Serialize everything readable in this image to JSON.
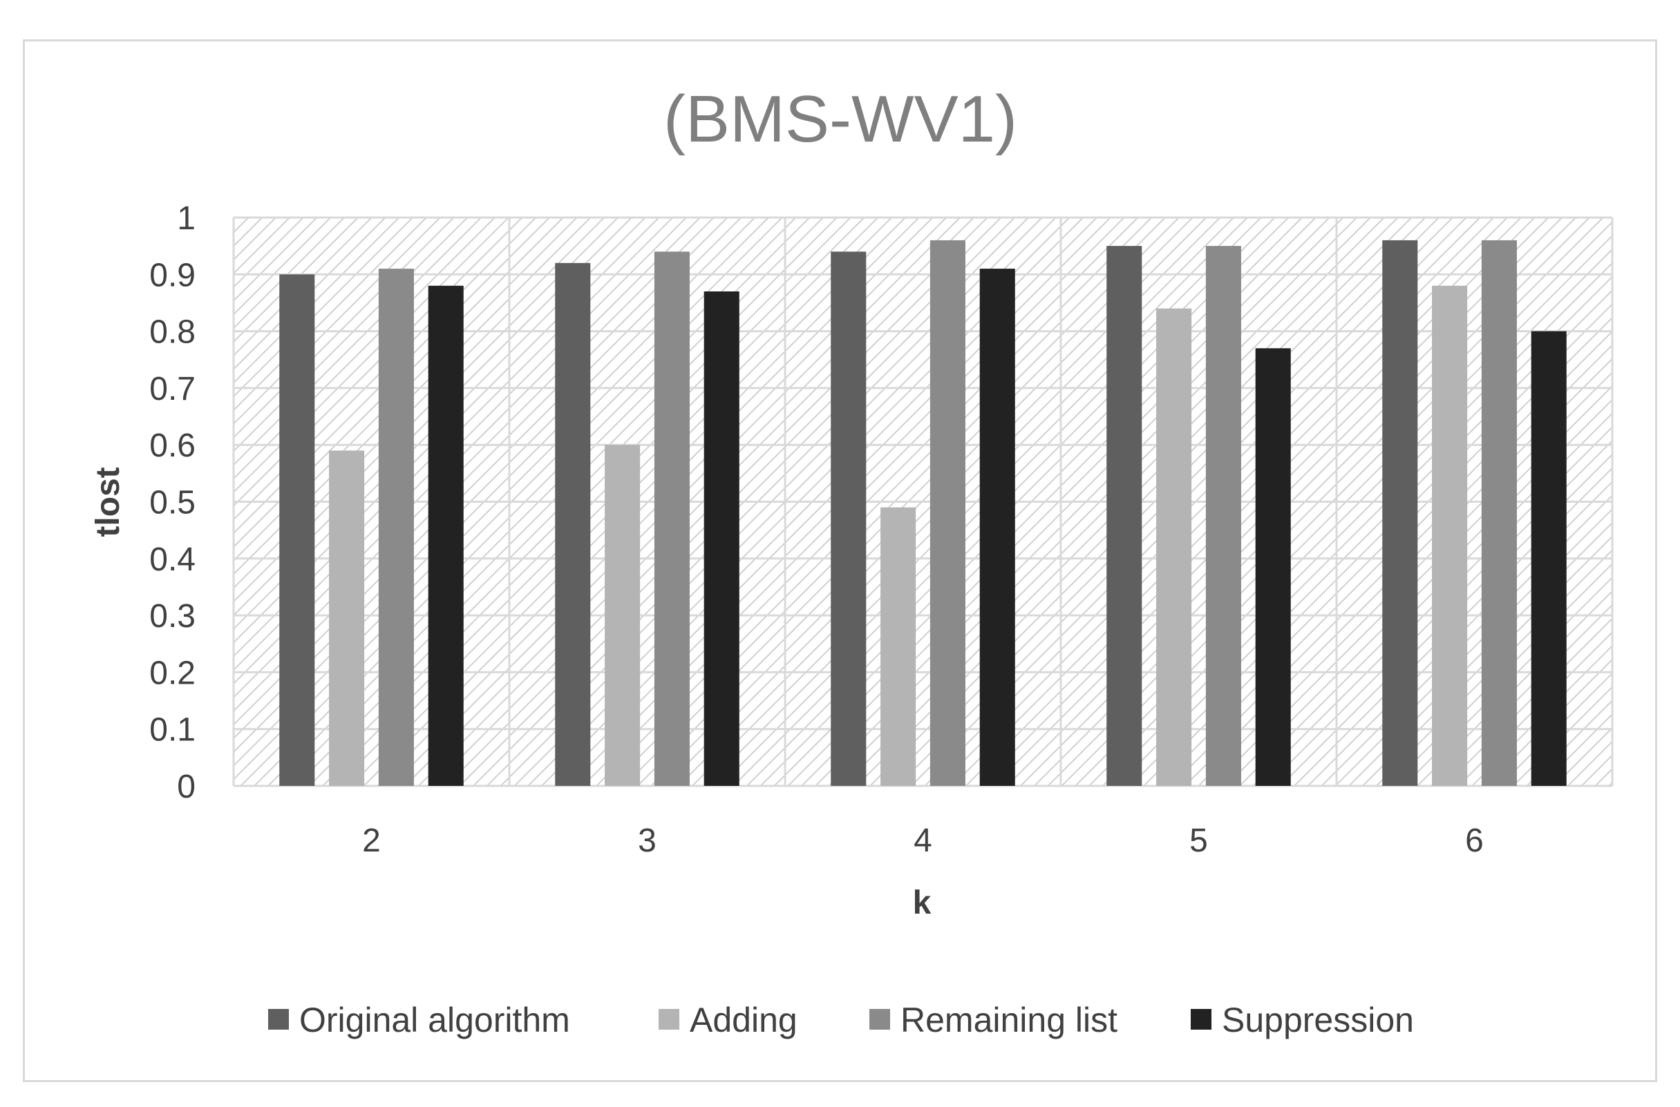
{
  "chart_data": {
    "type": "bar",
    "title": "(BMS-WV1)",
    "xlabel": "k",
    "ylabel": "tlost",
    "categories": [
      "2",
      "3",
      "4",
      "5",
      "6"
    ],
    "ylim": [
      0,
      1
    ],
    "yticks": [
      "0",
      "0.1",
      "0.2",
      "0.3",
      "0.4",
      "0.5",
      "0.6",
      "0.7",
      "0.8",
      "0.9",
      "1"
    ],
    "grid": true,
    "legend_position": "bottom",
    "series": [
      {
        "name": "Original algorithm",
        "color": "#5f5f5f",
        "values": [
          0.9,
          0.92,
          0.94,
          0.95,
          0.96
        ]
      },
      {
        "name": "Adding",
        "color": "#b4b4b4",
        "values": [
          0.59,
          0.6,
          0.49,
          0.84,
          0.88
        ]
      },
      {
        "name": "Remaining list",
        "color": "#8a8a8a",
        "values": [
          0.91,
          0.94,
          0.96,
          0.95,
          0.96
        ]
      },
      {
        "name": "Suppression",
        "color": "#222222",
        "values": [
          0.88,
          0.87,
          0.91,
          0.77,
          0.8
        ]
      }
    ]
  }
}
